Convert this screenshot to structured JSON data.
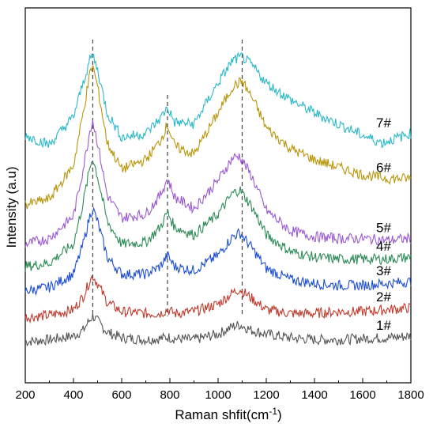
{
  "chart_data": {
    "type": "line",
    "xlabel": "Raman shfit(cm",
    "xlabel_sup": "-1",
    "xlabel_close": ")",
    "ylabel": "Intensity (a.u)",
    "xlim": [
      200,
      1800
    ],
    "ylim": [
      0,
      10
    ],
    "x_ticks": [
      200,
      400,
      600,
      800,
      1000,
      1200,
      1400,
      1600,
      1800
    ],
    "x_tick_labels": [
      "200",
      "400",
      "600",
      "800",
      "1000",
      "1200",
      "1400",
      "1600",
      "1800"
    ],
    "y_ticks_shown": false,
    "grid": false,
    "reference_lines": [
      480,
      790,
      1100
    ],
    "series": [
      {
        "name": "1#",
        "color": "#555555",
        "points": [
          [
            200,
            1.1
          ],
          [
            300,
            1.15
          ],
          [
            400,
            1.25
          ],
          [
            440,
            1.4
          ],
          [
            470,
            1.7
          ],
          [
            480,
            1.78
          ],
          [
            500,
            1.65
          ],
          [
            540,
            1.35
          ],
          [
            600,
            1.2
          ],
          [
            700,
            1.15
          ],
          [
            760,
            1.18
          ],
          [
            790,
            1.22
          ],
          [
            820,
            1.18
          ],
          [
            900,
            1.15
          ],
          [
            1000,
            1.3
          ],
          [
            1060,
            1.5
          ],
          [
            1090,
            1.55
          ],
          [
            1140,
            1.4
          ],
          [
            1200,
            1.3
          ],
          [
            1300,
            1.2
          ],
          [
            1400,
            1.15
          ],
          [
            1500,
            1.15
          ],
          [
            1600,
            1.18
          ],
          [
            1700,
            1.2
          ],
          [
            1800,
            1.25
          ]
        ]
      },
      {
        "name": "2#",
        "color": "#c0392b",
        "points": [
          [
            200,
            1.75
          ],
          [
            300,
            1.8
          ],
          [
            400,
            1.95
          ],
          [
            440,
            2.3
          ],
          [
            470,
            2.75
          ],
          [
            480,
            2.85
          ],
          [
            500,
            2.65
          ],
          [
            540,
            2.15
          ],
          [
            600,
            1.9
          ],
          [
            700,
            1.85
          ],
          [
            760,
            1.85
          ],
          [
            790,
            1.95
          ],
          [
            820,
            1.85
          ],
          [
            900,
            1.9
          ],
          [
            1000,
            2.1
          ],
          [
            1060,
            2.4
          ],
          [
            1090,
            2.5
          ],
          [
            1140,
            2.25
          ],
          [
            1200,
            1.95
          ],
          [
            1300,
            1.85
          ],
          [
            1400,
            1.85
          ],
          [
            1500,
            1.9
          ],
          [
            1600,
            1.9
          ],
          [
            1700,
            1.95
          ],
          [
            1800,
            2.0
          ]
        ]
      },
      {
        "name": "3#",
        "color": "#1f4fd1",
        "points": [
          [
            200,
            2.45
          ],
          [
            300,
            2.55
          ],
          [
            400,
            2.9
          ],
          [
            440,
            3.7
          ],
          [
            470,
            4.5
          ],
          [
            480,
            4.65
          ],
          [
            500,
            4.3
          ],
          [
            540,
            3.35
          ],
          [
            600,
            2.9
          ],
          [
            700,
            2.9
          ],
          [
            760,
            3.1
          ],
          [
            790,
            3.4
          ],
          [
            820,
            3.1
          ],
          [
            900,
            3.0
          ],
          [
            1000,
            3.4
          ],
          [
            1060,
            3.9
          ],
          [
            1090,
            4.0
          ],
          [
            1140,
            3.6
          ],
          [
            1200,
            3.05
          ],
          [
            1300,
            2.75
          ],
          [
            1400,
            2.65
          ],
          [
            1500,
            2.6
          ],
          [
            1600,
            2.6
          ],
          [
            1700,
            2.65
          ],
          [
            1800,
            2.7
          ]
        ]
      },
      {
        "name": "4#",
        "color": "#2e8b57",
        "points": [
          [
            200,
            3.1
          ],
          [
            300,
            3.2
          ],
          [
            400,
            3.7
          ],
          [
            440,
            4.8
          ],
          [
            470,
            5.8
          ],
          [
            480,
            6.0
          ],
          [
            500,
            5.5
          ],
          [
            540,
            4.3
          ],
          [
            600,
            3.7
          ],
          [
            700,
            3.75
          ],
          [
            760,
            4.15
          ],
          [
            790,
            4.55
          ],
          [
            820,
            4.15
          ],
          [
            900,
            3.95
          ],
          [
            1000,
            4.5
          ],
          [
            1060,
            5.05
          ],
          [
            1090,
            5.15
          ],
          [
            1140,
            4.7
          ],
          [
            1200,
            3.95
          ],
          [
            1300,
            3.5
          ],
          [
            1400,
            3.35
          ],
          [
            1500,
            3.3
          ],
          [
            1600,
            3.3
          ],
          [
            1700,
            3.3
          ],
          [
            1800,
            3.35
          ]
        ]
      },
      {
        "name": "5#",
        "color": "#9b59d0",
        "points": [
          [
            200,
            3.7
          ],
          [
            300,
            3.85
          ],
          [
            400,
            4.45
          ],
          [
            440,
            5.7
          ],
          [
            470,
            6.8
          ],
          [
            480,
            7.0
          ],
          [
            500,
            6.4
          ],
          [
            540,
            5.0
          ],
          [
            600,
            4.4
          ],
          [
            700,
            4.5
          ],
          [
            760,
            5.0
          ],
          [
            790,
            5.45
          ],
          [
            820,
            4.95
          ],
          [
            900,
            4.65
          ],
          [
            1000,
            5.4
          ],
          [
            1060,
            6.0
          ],
          [
            1090,
            6.05
          ],
          [
            1140,
            5.5
          ],
          [
            1200,
            4.6
          ],
          [
            1300,
            4.05
          ],
          [
            1400,
            3.9
          ],
          [
            1500,
            3.85
          ],
          [
            1600,
            3.85
          ],
          [
            1700,
            3.8
          ],
          [
            1800,
            3.85
          ]
        ]
      },
      {
        "name": "6#",
        "color": "#b8960c",
        "points": [
          [
            200,
            4.75
          ],
          [
            300,
            4.9
          ],
          [
            400,
            5.8
          ],
          [
            440,
            7.2
          ],
          [
            470,
            8.3
          ],
          [
            480,
            8.45
          ],
          [
            500,
            7.9
          ],
          [
            540,
            6.4
          ],
          [
            600,
            5.7
          ],
          [
            700,
            5.95
          ],
          [
            760,
            6.45
          ],
          [
            790,
            6.9
          ],
          [
            820,
            6.3
          ],
          [
            900,
            6.1
          ],
          [
            1000,
            7.2
          ],
          [
            1060,
            7.9
          ],
          [
            1100,
            8.05
          ],
          [
            1150,
            7.5
          ],
          [
            1200,
            6.8
          ],
          [
            1300,
            6.25
          ],
          [
            1400,
            5.95
          ],
          [
            1500,
            5.75
          ],
          [
            1600,
            5.55
          ],
          [
            1700,
            5.45
          ],
          [
            1800,
            5.45
          ]
        ]
      },
      {
        "name": "7#",
        "color": "#2ab8c8",
        "points": [
          [
            200,
            6.6
          ],
          [
            300,
            6.35
          ],
          [
            400,
            7.1
          ],
          [
            440,
            8.0
          ],
          [
            470,
            8.65
          ],
          [
            480,
            8.75
          ],
          [
            500,
            8.35
          ],
          [
            540,
            7.2
          ],
          [
            600,
            6.55
          ],
          [
            700,
            6.65
          ],
          [
            760,
            7.05
          ],
          [
            790,
            7.35
          ],
          [
            820,
            6.95
          ],
          [
            900,
            6.9
          ],
          [
            1000,
            8.0
          ],
          [
            1060,
            8.6
          ],
          [
            1100,
            8.7
          ],
          [
            1150,
            8.4
          ],
          [
            1200,
            8.0
          ],
          [
            1300,
            7.55
          ],
          [
            1400,
            7.2
          ],
          [
            1500,
            6.9
          ],
          [
            1600,
            6.6
          ],
          [
            1680,
            6.4
          ],
          [
            1800,
            6.65
          ]
        ]
      }
    ]
  }
}
